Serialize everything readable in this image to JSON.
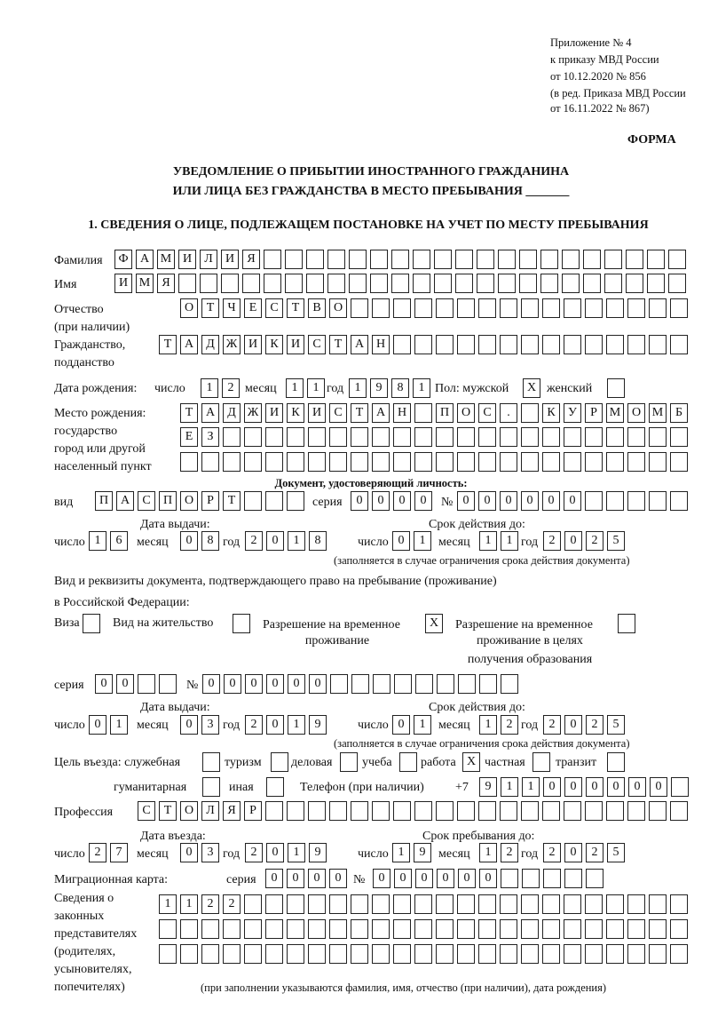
{
  "header": {
    "appendix": "Приложение № 4",
    "order": "к приказу МВД России",
    "order_date": "от 10.12.2020 № 856",
    "edition1": "(в ред. Приказа МВД России",
    "edition2": "от 16.11.2022 № 867)",
    "form_label": "ФОРМА",
    "title1": "УВЕДОМЛЕНИЕ О ПРИБЫТИИ ИНОСТРАННОГО ГРАЖДАНИНА",
    "title2": "ИЛИ ЛИЦА БЕЗ ГРАЖДАНСТВА В МЕСТО ПРЕБЫВАНИЯ _______",
    "section1": "1. СВЕДЕНИЯ О ЛИЦЕ, ПОДЛЕЖАЩЕМ ПОСТАНОВКЕ НА УЧЕТ ПО МЕСТУ ПРЕБЫВАНИЯ"
  },
  "labels": {
    "surname": "Фамилия",
    "name": "Имя",
    "patronymic": "Отчество",
    "patronymic2": "(при наличии)",
    "citizenship": "Гражданство,",
    "citizenship2": "подданство",
    "dob": "Дата рождения:",
    "day": "число",
    "month": "месяц",
    "year": "год",
    "sex": "Пол: мужской",
    "female": "женский",
    "birthplace1": "Место рождения:",
    "birthplace2": "государство",
    "birthplace3": "город или другой",
    "birthplace4": "населенный пункт",
    "id_doc": "Документ, удостоверяющий личность:",
    "kind": "вид",
    "series": "серия",
    "number": "№",
    "issue_date": "Дата выдачи:",
    "valid_until": "Срок действия до:",
    "valid_note": "(заполняется в случае ограничения срока действия документа)",
    "right_doc1": "Вид и реквизиты документа, подтверждающего право на пребывание (проживание)",
    "right_doc2": "в Российской Федерации:",
    "visa": "Виза",
    "residence": "Вид на жительство",
    "trp1": "Разрешение на временное",
    "trp2": "проживание",
    "trp_edu1": "Разрешение на временное",
    "trp_edu2": "проживание в целях",
    "trp_edu3": "получения образования",
    "purpose": "Цель въезда: служебная",
    "tourism": "туризм",
    "business": "деловая",
    "study": "учеба",
    "work": "работа",
    "private": "частная",
    "transit": "транзит",
    "humanitarian": "гуманитарная",
    "other": "иная",
    "phone": "Телефон (при наличии)",
    "phone_prefix": "+7",
    "profession": "Профессия",
    "entry_date": "Дата въезда:",
    "stay_until": "Срок пребывания до:",
    "migration_card": "Миграционная карта:",
    "reps1": "Сведения о",
    "reps2": "законных",
    "reps3": "представителях",
    "reps4": "(родителях,",
    "reps5": "усыновителях,",
    "reps6": "попечителях)",
    "reps_note": "(при заполнении указываются фамилия, имя, отчество (при наличии), дата рождения)"
  },
  "fields": {
    "surname": {
      "chars": [
        "Ф",
        "А",
        "М",
        "И",
        "Л",
        "И",
        "Я"
      ],
      "count": 27
    },
    "name": {
      "chars": [
        "И",
        "М",
        "Я"
      ],
      "count": 27
    },
    "patronymic": {
      "chars": [
        "О",
        "Т",
        "Ч",
        "Е",
        "С",
        "Т",
        "В",
        "О"
      ],
      "count": 24
    },
    "citizenship": {
      "chars": [
        "Т",
        "А",
        "Д",
        "Ж",
        "И",
        "К",
        "И",
        "С",
        "Т",
        "А",
        "Н"
      ],
      "count": 25
    },
    "dob_day": {
      "chars": [
        "1",
        "2"
      ],
      "count": 2
    },
    "dob_month": {
      "chars": [
        "1",
        "1"
      ],
      "count": 2
    },
    "dob_year": {
      "chars": [
        "1",
        "9",
        "8",
        "1"
      ],
      "count": 4
    },
    "sex_male": {
      "chars": [
        "X"
      ],
      "count": 1
    },
    "sex_female": {
      "chars": [],
      "count": 1
    },
    "birthplace1": {
      "chars": [
        "Т",
        "А",
        "Д",
        "Ж",
        "И",
        "К",
        "И",
        "С",
        "Т",
        "А",
        "Н",
        "",
        "П",
        "О",
        "С",
        ".",
        " ",
        "К",
        "У",
        "Р",
        "М",
        "О",
        "М",
        "Б"
      ],
      "count": 24
    },
    "birthplace2": {
      "chars": [
        "Е",
        "З"
      ],
      "count": 24
    },
    "birthplace3": {
      "chars": [],
      "count": 24
    },
    "doc_kind": {
      "chars": [
        "П",
        "А",
        "С",
        "П",
        "О",
        "Р",
        "Т"
      ],
      "count": 10
    },
    "doc_series": {
      "chars": [
        "0",
        "0",
        "0",
        "0"
      ],
      "count": 4
    },
    "doc_number": {
      "chars": [
        "0",
        "0",
        "0",
        "0",
        "0",
        "0"
      ],
      "count": 11
    },
    "doc_issue_day": {
      "chars": [
        "1",
        "6"
      ],
      "count": 2
    },
    "doc_issue_month": {
      "chars": [
        "0",
        "8"
      ],
      "count": 2
    },
    "doc_issue_year": {
      "chars": [
        "2",
        "0",
        "1",
        "8"
      ],
      "count": 4
    },
    "doc_valid_day": {
      "chars": [
        "0",
        "1"
      ],
      "count": 2
    },
    "doc_valid_month": {
      "chars": [
        "1",
        "1"
      ],
      "count": 2
    },
    "doc_valid_year": {
      "chars": [
        "2",
        "0",
        "2",
        "5"
      ],
      "count": 4
    },
    "visa": {
      "chars": [],
      "count": 1
    },
    "residence": {
      "chars": [],
      "count": 1
    },
    "trp": {
      "chars": [
        "X"
      ],
      "count": 1
    },
    "trp_edu": {
      "chars": [],
      "count": 1
    },
    "rd_series": {
      "chars": [
        "0",
        "0"
      ],
      "count": 4
    },
    "rd_number": {
      "chars": [
        "0",
        "0",
        "0",
        "0",
        "0",
        "0"
      ],
      "count": 15
    },
    "rd_issue_day": {
      "chars": [
        "0",
        "1"
      ],
      "count": 2
    },
    "rd_issue_month": {
      "chars": [
        "0",
        "3"
      ],
      "count": 2
    },
    "rd_issue_year": {
      "chars": [
        "2",
        "0",
        "1",
        "9"
      ],
      "count": 4
    },
    "rd_valid_day": {
      "chars": [
        "0",
        "1"
      ],
      "count": 2
    },
    "rd_valid_month": {
      "chars": [
        "1",
        "2"
      ],
      "count": 2
    },
    "rd_valid_year": {
      "chars": [
        "2",
        "0",
        "2",
        "5"
      ],
      "count": 4
    },
    "p_service": {
      "chars": [],
      "count": 1
    },
    "p_tourism": {
      "chars": [],
      "count": 1
    },
    "p_business": {
      "chars": [],
      "count": 1
    },
    "p_study": {
      "chars": [],
      "count": 1
    },
    "p_work": {
      "chars": [
        "X"
      ],
      "count": 1
    },
    "p_private": {
      "chars": [],
      "count": 1
    },
    "p_transit": {
      "chars": [],
      "count": 1
    },
    "p_humanitarian": {
      "chars": [],
      "count": 1
    },
    "p_other": {
      "chars": [],
      "count": 1
    },
    "phone": {
      "chars": [
        "9",
        "1",
        "1",
        "0",
        "0",
        "0",
        "0",
        "0",
        "0"
      ],
      "count": 10
    },
    "profession": {
      "chars": [
        "С",
        "Т",
        "О",
        "Л",
        "Я",
        "Р"
      ],
      "count": 26
    },
    "entry_day": {
      "chars": [
        "2",
        "7"
      ],
      "count": 2
    },
    "entry_month": {
      "chars": [
        "0",
        "3"
      ],
      "count": 2
    },
    "entry_year": {
      "chars": [
        "2",
        "0",
        "1",
        "9"
      ],
      "count": 4
    },
    "stay_day": {
      "chars": [
        "1",
        "9"
      ],
      "count": 2
    },
    "stay_month": {
      "chars": [
        "1",
        "2"
      ],
      "count": 2
    },
    "stay_year": {
      "chars": [
        "2",
        "0",
        "2",
        "5"
      ],
      "count": 4
    },
    "mc_series": {
      "chars": [
        "0",
        "0",
        "0",
        "0"
      ],
      "count": 4
    },
    "mc_number": {
      "chars": [
        "0",
        "0",
        "0",
        "0",
        "0",
        "0"
      ],
      "count": 11
    },
    "reps1": {
      "chars": [
        "1",
        "1",
        "2",
        "2"
      ],
      "count": 25
    },
    "reps2": {
      "chars": [],
      "count": 25
    },
    "reps3": {
      "chars": [],
      "count": 25
    }
  }
}
